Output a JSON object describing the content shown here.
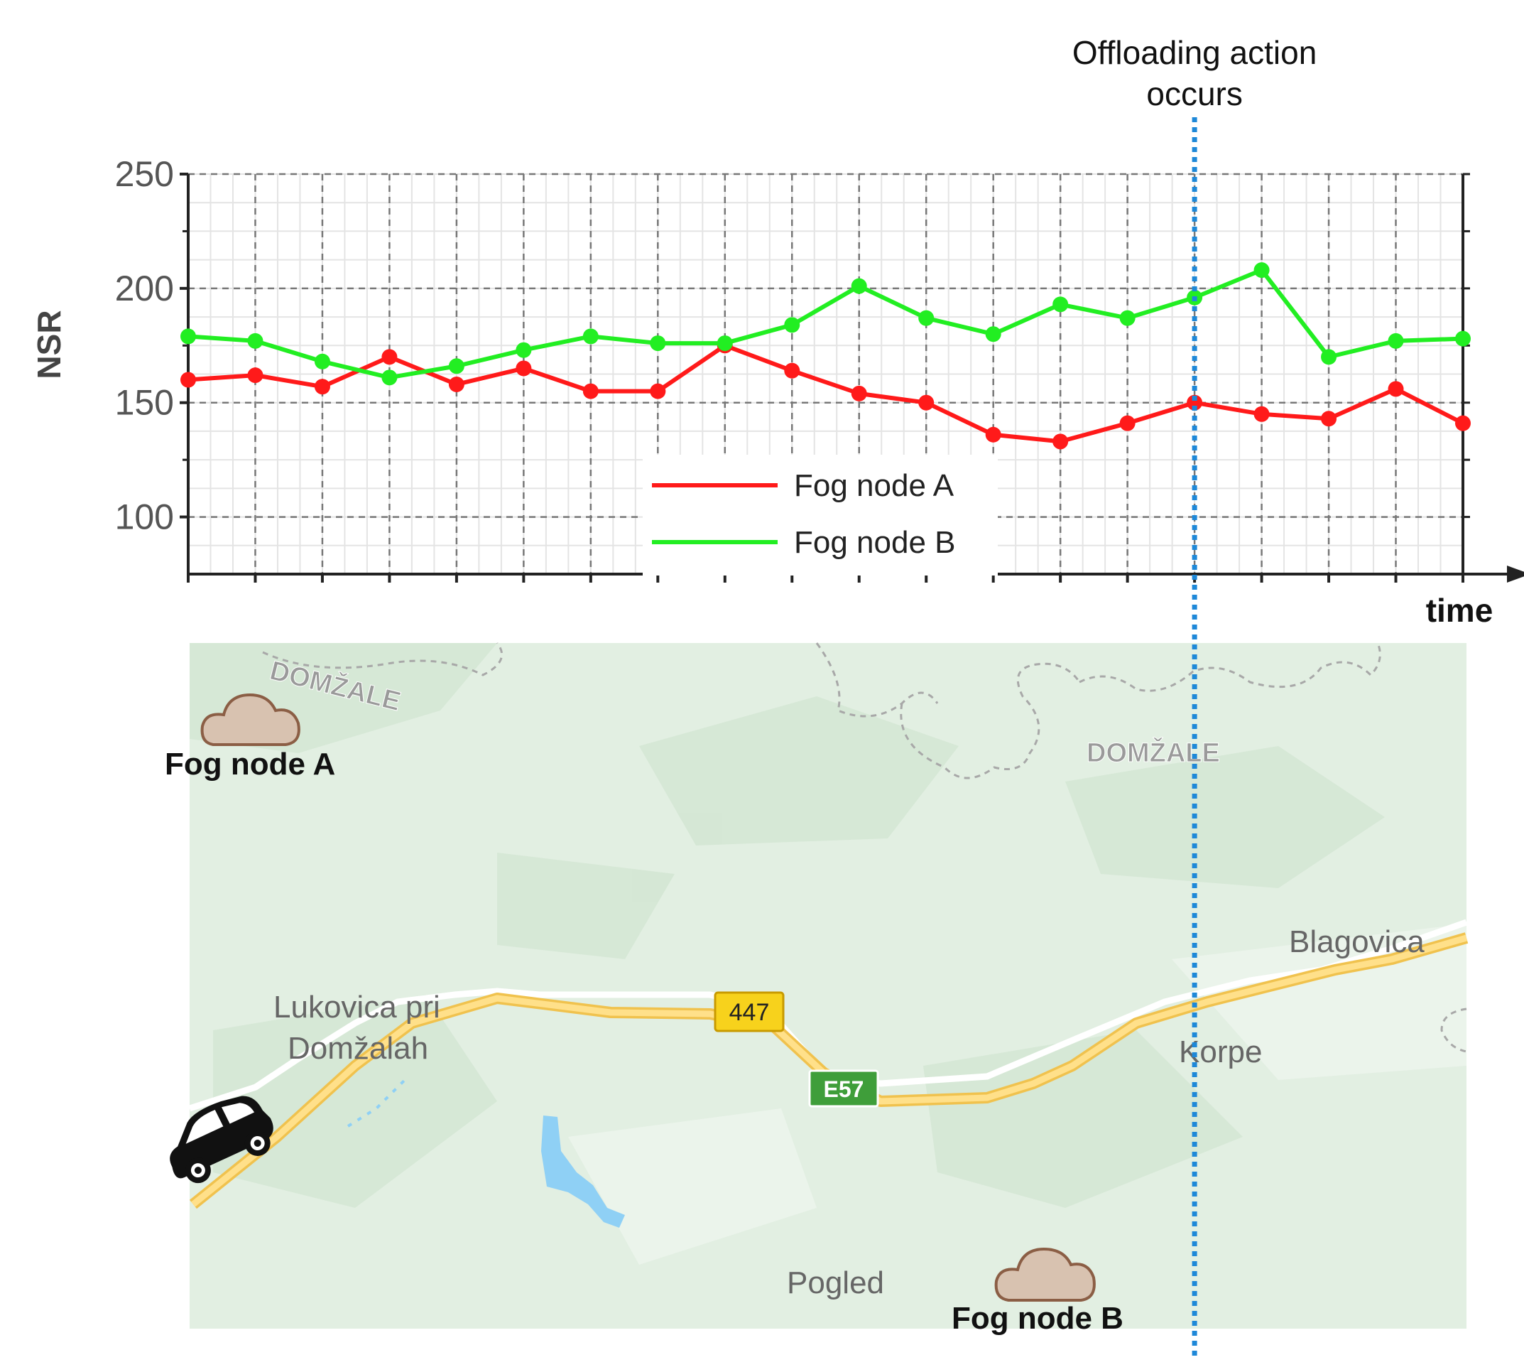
{
  "chart_data": {
    "type": "line",
    "xlabel": "time",
    "ylabel": "NSR",
    "ylim": [
      75,
      250
    ],
    "yticks": [
      100,
      150,
      200,
      250
    ],
    "grid": true,
    "legend_position": "bottom-center",
    "x": [
      1,
      2,
      3,
      4,
      5,
      6,
      7,
      8,
      9,
      10,
      11,
      12,
      13,
      14,
      15,
      16,
      17,
      18,
      19,
      20
    ],
    "series": [
      {
        "name": "Fog node A",
        "color": "#ff1a1a",
        "values": [
          160,
          162,
          157,
          170,
          158,
          165,
          155,
          155,
          175,
          164,
          154,
          150,
          136,
          133,
          141,
          150,
          145,
          143,
          156,
          141
        ]
      },
      {
        "name": "Fog node B",
        "color": "#22ee22",
        "values": [
          179,
          177,
          168,
          161,
          166,
          173,
          179,
          176,
          176,
          184,
          201,
          187,
          180,
          193,
          187,
          196,
          208,
          170,
          177,
          178
        ]
      }
    ],
    "annotations": [
      {
        "text_lines": [
          "Offloading action",
          "occurs"
        ],
        "x": 16,
        "color": "#1e88d8"
      }
    ]
  },
  "map": {
    "region_labels": [
      "DOMŽALE",
      "DOMŽALE"
    ],
    "place_labels": [
      "Lukovica pri",
      "Domžalah",
      "Blagovica",
      "Korpe",
      "Pogled"
    ],
    "road_shields": [
      {
        "label": "447",
        "color": "#f7d21c"
      },
      {
        "label": "E57",
        "color": "#3f9e3a"
      }
    ],
    "fog_nodes": [
      "Fog node A",
      "Fog node B"
    ],
    "vehicle_icon": "car-icon",
    "fog_node_icon": "cloud-icon"
  }
}
